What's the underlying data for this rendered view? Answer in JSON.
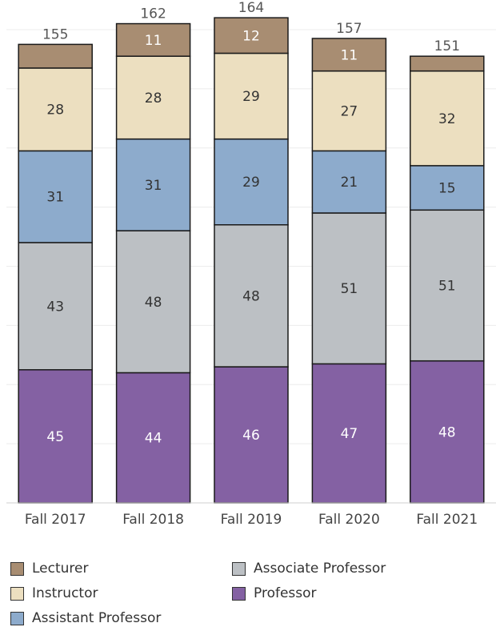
{
  "chart_data": {
    "type": "bar",
    "stacked": true,
    "categories": [
      "Fall 2017",
      "Fall 2018",
      "Fall 2019",
      "Fall 2020",
      "Fall 2021"
    ],
    "series": [
      {
        "name": "Professor",
        "values": [
          45,
          44,
          46,
          47,
          48
        ],
        "labels": [
          "45",
          "44",
          "46",
          "47",
          "48"
        ],
        "color": "#8461a3",
        "label_color": "#ffffff"
      },
      {
        "name": "Associate Professor",
        "values": [
          43,
          48,
          48,
          51,
          51
        ],
        "labels": [
          "43",
          "48",
          "48",
          "51",
          "51"
        ],
        "color": "#bcc0c4",
        "label_color": "#333333"
      },
      {
        "name": "Assistant Professor",
        "values": [
          31,
          31,
          29,
          21,
          15
        ],
        "labels": [
          "31",
          "31",
          "29",
          "21",
          "15"
        ],
        "color": "#8dabcc",
        "label_color": "#333333"
      },
      {
        "name": "Instructor",
        "values": [
          28,
          28,
          29,
          27,
          32
        ],
        "labels": [
          "28",
          "28",
          "29",
          "27",
          "32"
        ],
        "color": "#ecdfc0",
        "label_color": "#333333"
      },
      {
        "name": "Lecturer",
        "values": [
          8,
          11,
          12,
          11,
          5
        ],
        "labels": [
          "",
          "11",
          "12",
          "11",
          ""
        ],
        "color": "#a88d72",
        "label_color": "#ffffff"
      }
    ],
    "totals": [
      "155",
      "162",
      "164",
      "157",
      "151"
    ],
    "ylim": [
      0,
      170
    ],
    "grid": true,
    "legend_position": "bottom",
    "legend_order": [
      "Lecturer",
      "Associate Professor",
      "Instructor",
      "Professor",
      "Assistant Professor"
    ]
  }
}
